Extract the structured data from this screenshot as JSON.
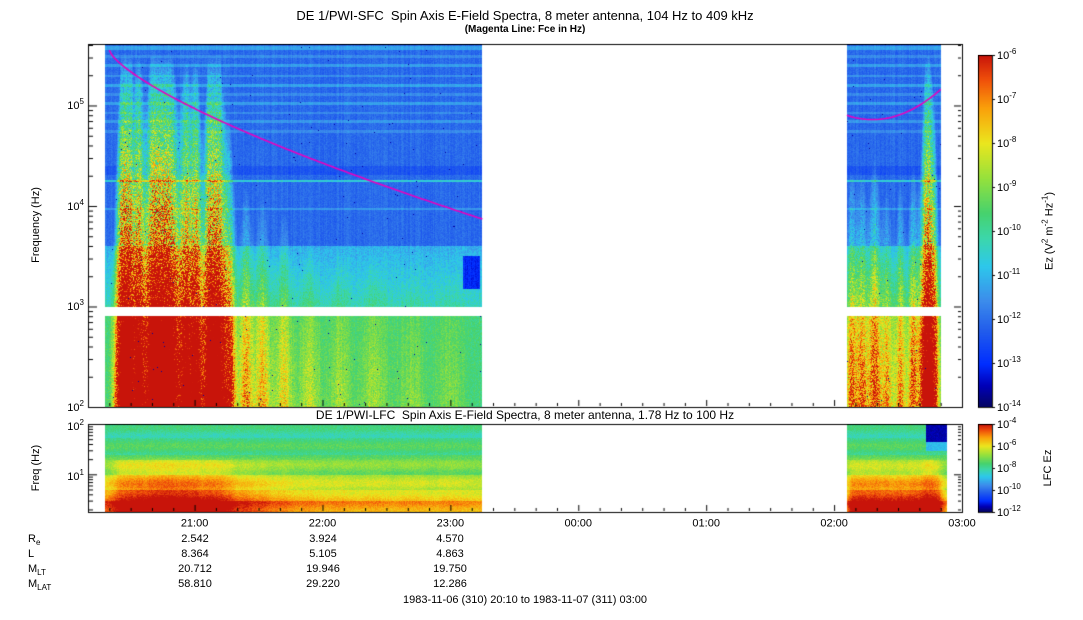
{
  "page": {
    "footer": "1983-11-06 (310) 20:10 to 1983-11-07 (311) 03:00"
  },
  "sfc": {
    "title": "DE 1/PWI-SFC  Spin Axis E-Field Spectra, 8 meter antenna, 104 Hz to 409 kHz",
    "subtitle": "(Magenta Line: Fce in Hz)",
    "ylabel": "Frequency (Hz)",
    "ytick_exponents": [
      5,
      4,
      3,
      2
    ],
    "cbar_exponents": [
      -6,
      -7,
      -8,
      -9,
      -10,
      -11,
      -12,
      -13,
      -14
    ],
    "cbar_label_parts": [
      [
        "t",
        "Ez (V"
      ],
      [
        "s",
        "2"
      ],
      [
        "t",
        " m"
      ],
      [
        "s",
        "-2"
      ],
      [
        "t",
        " Hz"
      ],
      [
        "s",
        "-1"
      ],
      [
        "t",
        ")"
      ]
    ]
  },
  "lfc": {
    "title": "DE 1/PWI-LFC  Spin Axis E-Field Spectra, 8 meter antenna, 1.78 Hz to 100 Hz",
    "ylabel": "Freq (Hz)",
    "ytick_exponents": [
      2,
      1
    ],
    "cbar_exponents": [
      -4,
      -6,
      -8,
      -10,
      -12
    ],
    "cbar_label": "LFC Ez"
  },
  "xaxis": {
    "tick_labels": [
      "21:00",
      "22:00",
      "23:00",
      "00:00",
      "01:00",
      "02:00",
      "03:00"
    ],
    "tick_minutes": [
      50,
      110,
      170,
      230,
      290,
      350,
      410
    ],
    "total_minutes": 410
  },
  "ephemeris": {
    "rows": [
      {
        "label": "R",
        "sub": "e",
        "values": [
          "2.542",
          "3.924",
          "4.570"
        ]
      },
      {
        "label": "L",
        "sub": "",
        "values": [
          "8.364",
          "5.105",
          "4.863"
        ]
      },
      {
        "label": "M",
        "sub": "LT",
        "values": [
          "20.712",
          "19.946",
          "19.750"
        ]
      },
      {
        "label": "M",
        "sub": "LAT",
        "values": [
          "58.810",
          "29.220",
          "12.286"
        ]
      }
    ]
  },
  "chart_data": {
    "type": "heatmap",
    "subtype": "spectrogram",
    "time_start": "1983-11-06 20:10",
    "time_end": "1983-11-07 03:00",
    "total_minutes": 410,
    "fce_color": "#e800c0",
    "colormap_stops": [
      [
        0.0,
        5,
        5,
        100
      ],
      [
        0.06,
        0,
        0,
        185
      ],
      [
        0.12,
        0,
        45,
        255
      ],
      [
        0.22,
        35,
        95,
        235
      ],
      [
        0.3,
        60,
        140,
        235
      ],
      [
        0.4,
        45,
        200,
        235
      ],
      [
        0.48,
        60,
        215,
        170
      ],
      [
        0.55,
        70,
        210,
        110
      ],
      [
        0.65,
        150,
        225,
        60
      ],
      [
        0.75,
        235,
        230,
        30
      ],
      [
        0.85,
        250,
        160,
        10
      ],
      [
        0.93,
        240,
        80,
        10
      ],
      [
        1.0,
        200,
        20,
        10
      ]
    ],
    "sfc": {
      "freq_min_hz": 104,
      "freq_max_hz": 409000,
      "value_top": 1e-06,
      "value_bottom": 1e-14,
      "segments_min": [
        [
          8,
          185
        ],
        [
          356,
          400
        ]
      ],
      "gap_freq_hz": [
        810,
        1010
      ],
      "background": {
        "blue_v": 0.24,
        "cyan_v_top": 0.36,
        "cyan_v_bottom": 0.46,
        "green_v": 0.54
      },
      "stripes": [
        {
          "f": 18000,
          "dlog": 0.013,
          "v": 0.43
        },
        {
          "f": 9500,
          "dlog": 0.01,
          "v": 0.32
        },
        {
          "f": 23000,
          "dlog": 0.045,
          "v": 0.2
        },
        {
          "f": 56000,
          "dlog": 0.015,
          "v": 0.3
        },
        {
          "f": 70000,
          "dlog": 0.012,
          "v": 0.32
        },
        {
          "f": 85000,
          "dlog": 0.012,
          "v": 0.3
        },
        {
          "f": 105000,
          "dlog": 0.015,
          "v": 0.33
        },
        {
          "f": 130000,
          "dlog": 0.012,
          "v": 0.3
        },
        {
          "f": 160000,
          "dlog": 0.015,
          "v": 0.34
        },
        {
          "f": 200000,
          "dlog": 0.012,
          "v": 0.31
        },
        {
          "f": 250000,
          "dlog": 0.015,
          "v": 0.33
        },
        {
          "f": 310000,
          "dlog": 0.015,
          "v": 0.3
        },
        {
          "f": 380000,
          "dlog": 0.02,
          "v": 0.34
        }
      ],
      "bursts": [
        {
          "t": 15,
          "a": 0.7,
          "w": 2.5
        },
        {
          "t": 19,
          "a": 0.9,
          "w": 2.5
        },
        {
          "t": 24,
          "a": 0.75,
          "w": 2
        },
        {
          "t": 30,
          "a": 0.95,
          "w": 3
        },
        {
          "t": 35,
          "a": 1.0,
          "w": 2.5
        },
        {
          "t": 40,
          "a": 0.8,
          "w": 2.5
        },
        {
          "t": 46,
          "a": 0.9,
          "w": 2.5
        },
        {
          "t": 51,
          "a": 0.8,
          "w": 2
        },
        {
          "t": 57,
          "a": 0.95,
          "w": 2.5
        },
        {
          "t": 62,
          "a": 0.85,
          "w": 2.5
        },
        {
          "t": 67,
          "a": 0.6,
          "w": 2
        },
        {
          "t": 74,
          "a": 0.5,
          "w": 2.5
        },
        {
          "t": 82,
          "a": 0.45,
          "w": 3
        },
        {
          "t": 92,
          "a": 0.4,
          "w": 3
        },
        {
          "t": 104,
          "a": 0.3,
          "w": 4
        },
        {
          "t": 118,
          "a": 0.26,
          "w": 4
        },
        {
          "t": 134,
          "a": 0.24,
          "w": 5
        },
        {
          "t": 152,
          "a": 0.2,
          "w": 5
        },
        {
          "t": 170,
          "a": 0.18,
          "w": 5
        },
        {
          "t": 358,
          "a": 0.55,
          "w": 2
        },
        {
          "t": 363,
          "a": 0.5,
          "w": 2
        },
        {
          "t": 369,
          "a": 0.6,
          "w": 2.5
        },
        {
          "t": 375,
          "a": 0.45,
          "w": 2
        },
        {
          "t": 381,
          "a": 0.5,
          "w": 2
        },
        {
          "t": 387,
          "a": 0.55,
          "w": 2
        },
        {
          "t": 393,
          "a": 0.9,
          "w": 2.2
        },
        {
          "t": 397,
          "a": 0.65,
          "w": 2
        }
      ],
      "dark_patch": {
        "t": [
          176,
          184
        ],
        "f": [
          1500,
          3200
        ],
        "v": 0.12
      },
      "fce_seg1": {
        "logf0": 5.55,
        "drop": 1.68,
        "pow": 0.72,
        "t0": 10,
        "t1": 185,
        "span": 175
      },
      "fce_seg2": {
        "base": 4.86,
        "amp": 0.3,
        "center": 368,
        "halfspan": 32,
        "t0": 356,
        "t1": 400
      }
    },
    "lfc": {
      "freq_min_hz": 1.78,
      "freq_max_hz": 100,
      "value_top": 0.0001,
      "value_bottom": 1e-12,
      "segments_min": [
        [
          8,
          185
        ],
        [
          356,
          403
        ]
      ],
      "band_levels": [
        [
          55,
          0.5
        ],
        [
          25,
          0.54
        ],
        [
          10,
          0.6
        ],
        [
          5,
          0.68
        ],
        [
          3,
          0.76
        ],
        [
          0,
          0.84
        ]
      ],
      "left_cluster": {
        "center": 40,
        "sigma": 28,
        "amp": 0.28,
        "logf_ref": 1.4
      },
      "right_cluster": {
        "t0": 357,
        "t1": 401,
        "amp": 0.26
      },
      "dark_patch": {
        "t": [
          393,
          403
        ],
        "fmin": 45,
        "v": 0.05
      }
    }
  }
}
